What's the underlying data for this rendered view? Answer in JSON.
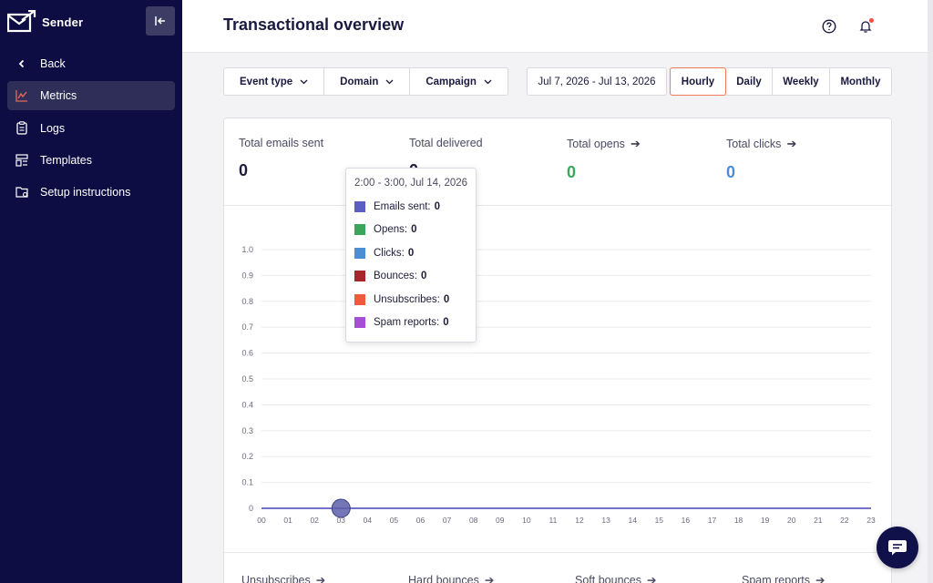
{
  "app": {
    "name": "Sender"
  },
  "sidebar": {
    "items": [
      {
        "label": "Back",
        "icon": "chevron-left-icon"
      },
      {
        "label": "Metrics",
        "icon": "metrics-icon",
        "active": true
      },
      {
        "label": "Logs",
        "icon": "clipboard-icon"
      },
      {
        "label": "Templates",
        "icon": "templates-icon"
      },
      {
        "label": "Setup instructions",
        "icon": "folder-settings-icon"
      }
    ]
  },
  "header": {
    "title": "Transactional overview"
  },
  "filters": {
    "event_type": "Event type",
    "domain": "Domain",
    "campaign": "Campaign",
    "date_range": "Jul 7, 2026 - Jul 13, 2026",
    "periods": [
      "Hourly",
      "Daily",
      "Weekly",
      "Monthly"
    ],
    "active_period": "Hourly"
  },
  "stats": {
    "sent": {
      "label": "Total emails sent",
      "value": "0"
    },
    "delivered": {
      "label": "Total delivered",
      "value": "0"
    },
    "opens": {
      "label": "Total opens",
      "value": "0"
    },
    "clicks": {
      "label": "Total clicks",
      "value": "0"
    }
  },
  "bottom_stats": [
    "Unsubscribes",
    "Hard bounces",
    "Soft bounces",
    "Spam reports"
  ],
  "tooltip": {
    "title": "2:00 - 3:00, Jul 14, 2026",
    "rows": [
      {
        "label": "Emails sent:",
        "value": "0",
        "color": "#5c5ec4"
      },
      {
        "label": "Opens:",
        "value": "0",
        "color": "#3aa65c"
      },
      {
        "label": "Clicks:",
        "value": "0",
        "color": "#4a8fd4"
      },
      {
        "label": "Bounces:",
        "value": "0",
        "color": "#a6262a"
      },
      {
        "label": "Unsubscribes:",
        "value": "0",
        "color": "#f05a3c"
      },
      {
        "label": "Spam reports:",
        "value": "0",
        "color": "#a44fd6"
      }
    ]
  },
  "colors": {
    "opens": "#3aa65c",
    "clicks": "#4a8fd4",
    "line": "#5c5ec4",
    "accent": "#f07a5a"
  },
  "chart_data": {
    "type": "line",
    "categories": [
      "00",
      "01",
      "02",
      "03",
      "04",
      "05",
      "06",
      "07",
      "08",
      "09",
      "10",
      "11",
      "12",
      "13",
      "14",
      "15",
      "16",
      "17",
      "18",
      "19",
      "20",
      "21",
      "22",
      "23"
    ],
    "yticks": [
      "1.0",
      "0.9",
      "0.8",
      "0.7",
      "0.6",
      "0.5",
      "0.4",
      "0.3",
      "0.2",
      "0.1",
      "0"
    ],
    "ylim": [
      0,
      1
    ],
    "series": [
      {
        "name": "Emails sent",
        "values": [
          0,
          0,
          0,
          0,
          0,
          0,
          0,
          0,
          0,
          0,
          0,
          0,
          0,
          0,
          0,
          0,
          0,
          0,
          0,
          0,
          0,
          0,
          0,
          0
        ]
      }
    ],
    "highlight_index": 3,
    "grid": true
  }
}
